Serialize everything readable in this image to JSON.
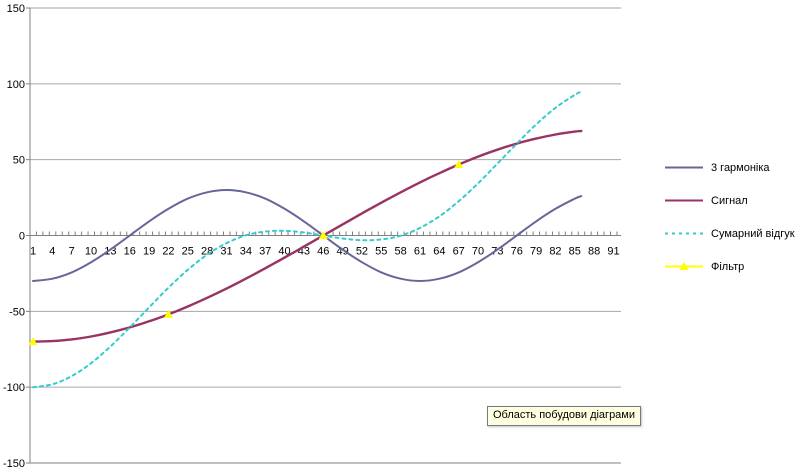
{
  "chart_data": {
    "type": "line",
    "categories_sampled": [
      1,
      4,
      7,
      10,
      13,
      16,
      19,
      22,
      25,
      28,
      31,
      34,
      37,
      40,
      43,
      46,
      49,
      52,
      55,
      58,
      61,
      64,
      67,
      70,
      73,
      76,
      79,
      82,
      85,
      86
    ],
    "x_tick_labels": [
      "1",
      "4",
      "7",
      "10",
      "13",
      "16",
      "19",
      "22",
      "25",
      "28",
      "31",
      "34",
      "37",
      "40",
      "43",
      "46",
      "49",
      "52",
      "55",
      "58",
      "61",
      "64",
      "67",
      "70",
      "73",
      "76",
      "79",
      "82",
      "85",
      "88",
      "91"
    ],
    "y_tick_labels": [
      "150",
      "100",
      "50",
      "0",
      "-50",
      "-100",
      "-150"
    ],
    "y_tick_values": [
      150,
      100,
      50,
      0,
      -50,
      -100,
      -150
    ],
    "ylim": [
      -150,
      150
    ],
    "xlim": [
      1,
      91
    ],
    "grid": "horizontal",
    "legend_position": "right",
    "series": [
      {
        "name": "3 гармоніка",
        "color": "#666699",
        "style": "solid",
        "values": [
          -30,
          -28.5,
          -24.3,
          -17.6,
          -9.3,
          0,
          9.3,
          17.6,
          24.3,
          28.5,
          30,
          28.5,
          24.3,
          17.6,
          9.3,
          0,
          -9.3,
          -17.6,
          -24.3,
          -28.5,
          -30,
          -28.5,
          -24.3,
          -17.6,
          -9.3,
          0,
          9.3,
          17.6,
          24.3,
          26
        ]
      },
      {
        "name": "Сигнал",
        "color": "#993366",
        "style": "solid",
        "values": [
          -70,
          -69.6,
          -68.5,
          -66.6,
          -63.9,
          -60.6,
          -56.6,
          -52,
          -46.8,
          -41.1,
          -35,
          -28.5,
          -21.6,
          -14.6,
          -7.3,
          0,
          7.3,
          14.6,
          21.6,
          28.5,
          35,
          41.1,
          46.8,
          52,
          56.6,
          60.6,
          63.9,
          66.6,
          68.5,
          68.9
        ]
      },
      {
        "name": "Сумарний відгук",
        "color": "#33CCCC",
        "style": "dashed",
        "values": [
          -100,
          -98.1,
          -92.7,
          -84.2,
          -73.2,
          -60.6,
          -47.4,
          -34.4,
          -22.6,
          -12.6,
          -5,
          0.1,
          2.6,
          3.1,
          2,
          0,
          -2,
          -3.1,
          -2.6,
          -0.1,
          5,
          12.6,
          22.6,
          34.4,
          47.4,
          60.6,
          73.2,
          84.2,
          92.7,
          94.9
        ]
      },
      {
        "name": "Фільтр",
        "color": "#FFFF00",
        "style": "line-markers",
        "values": [
          -70,
          -69.6,
          -68.5,
          -66.6,
          -63.9,
          -60.6,
          -56.6,
          -52,
          -46.8,
          -41.1,
          -35,
          -28.5,
          -21.6,
          -14.6,
          -7.3,
          0,
          7.3,
          14.6,
          21.6,
          28.5,
          35,
          41.1,
          46.8,
          52,
          56.6,
          60.6,
          63.9,
          66.6,
          68.5,
          68.9
        ],
        "marker_points": [
          [
            1,
            -70
          ],
          [
            22,
            -52
          ],
          [
            46,
            0
          ],
          [
            67,
            46.8
          ]
        ]
      }
    ]
  },
  "tooltip": {
    "text": "Область побудови діаграми"
  },
  "colors": {
    "background": "#FFFFFF",
    "gridline": "#A6A6A6",
    "axis": "#808080",
    "tooltip_bg": "#FFFFE1",
    "label_text": "#000000"
  }
}
